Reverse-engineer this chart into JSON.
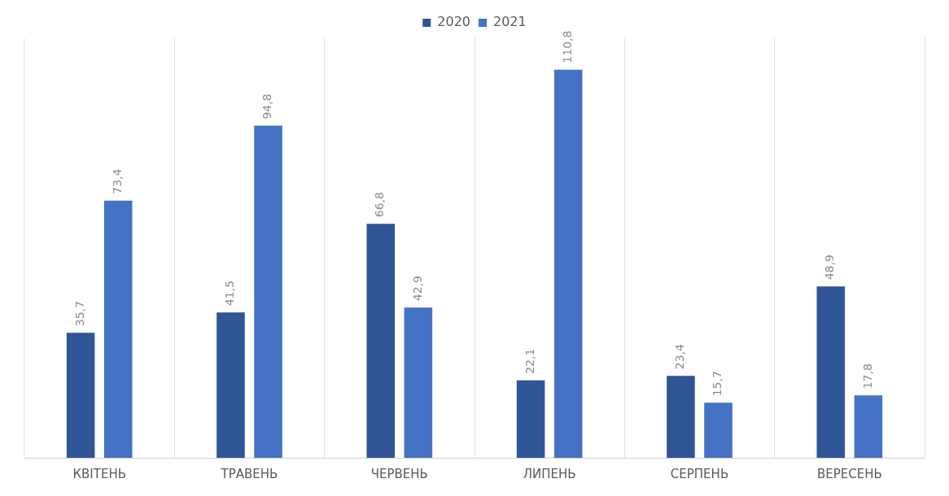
{
  "chart_data": {
    "type": "bar",
    "categories": [
      "КВІТЕНЬ",
      "ТРАВЕНЬ",
      "ЧЕРВЕНЬ",
      "ЛИПЕНЬ",
      "СЕРПЕНЬ",
      "ВЕРЕСЕНЬ"
    ],
    "series": [
      {
        "name": "2020",
        "color": "#2f5597",
        "values": [
          35.7,
          41.5,
          66.8,
          22.1,
          23.4,
          48.9
        ],
        "value_labels": [
          "35,7",
          "41,5",
          "66,8",
          "22,1",
          "23,4",
          "48,9"
        ]
      },
      {
        "name": "2021",
        "color": "#4472c4",
        "values": [
          73.4,
          94.8,
          42.9,
          110.8,
          15.7,
          17.8
        ],
        "value_labels": [
          "73,4",
          "94,8",
          "42,9",
          "110,8",
          "15,7",
          "17,8"
        ]
      }
    ],
    "tick_labels": "x",
    "grid": "x",
    "legend": "top"
  }
}
